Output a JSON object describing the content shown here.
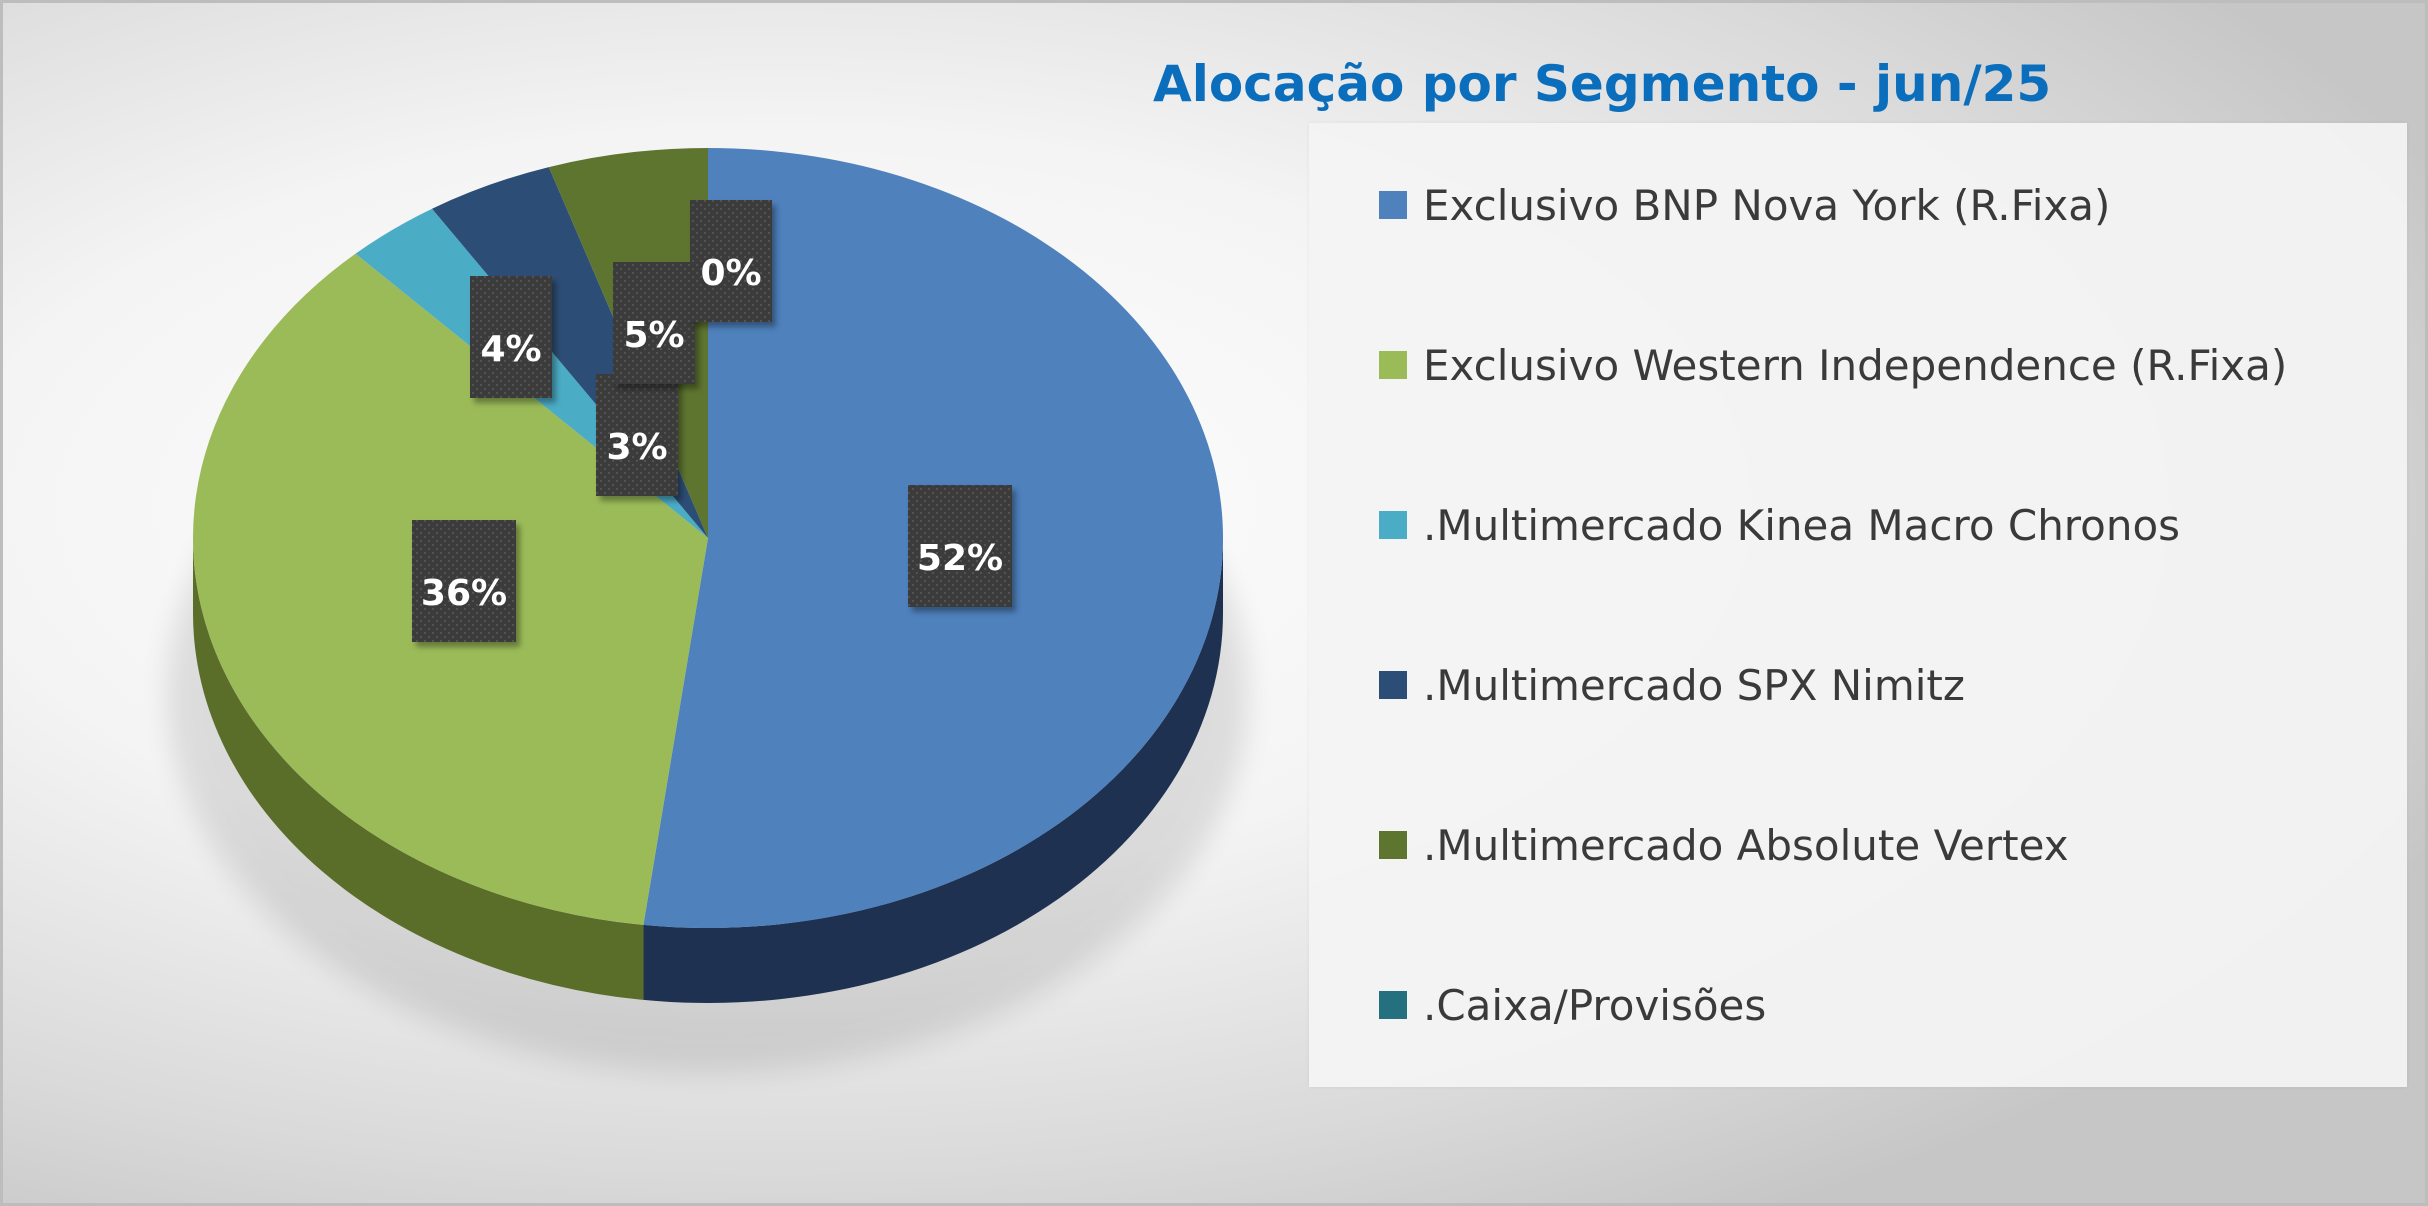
{
  "chart_data": {
    "type": "pie",
    "title": "Alocação por Segmento - jun/25",
    "legend_position": "right",
    "slices": [
      {
        "label": "Exclusivo BNP Nova York (R.Fixa)",
        "value": 52,
        "display": "52%",
        "color": "#4f81bd",
        "side_color": "#1f3150"
      },
      {
        "label": "Exclusivo Western Independence (R.Fixa)",
        "value": 36,
        "display": "36%",
        "color": "#9bbb59",
        "side_color": "#5a6e2a"
      },
      {
        "label": ".Multimercado Kinea Macro Chronos",
        "value": 3,
        "display": "3%",
        "color": "#4bacc6",
        "side_color": "#2d6e80"
      },
      {
        "label": ".Multimercado SPX Nimitz",
        "value": 4,
        "display": "4%",
        "color": "#2c4d75",
        "side_color": "#1a2f48"
      },
      {
        "label": ".Multimercado Absolute Vertex",
        "value": 5,
        "display": "5%",
        "color": "#5e7530",
        "side_color": "#3c4b1d"
      },
      {
        "label": ".Caixa/Provisões",
        "value": 0,
        "display": "0%",
        "color": "#24707e",
        "side_color": "#17474f"
      }
    ]
  }
}
